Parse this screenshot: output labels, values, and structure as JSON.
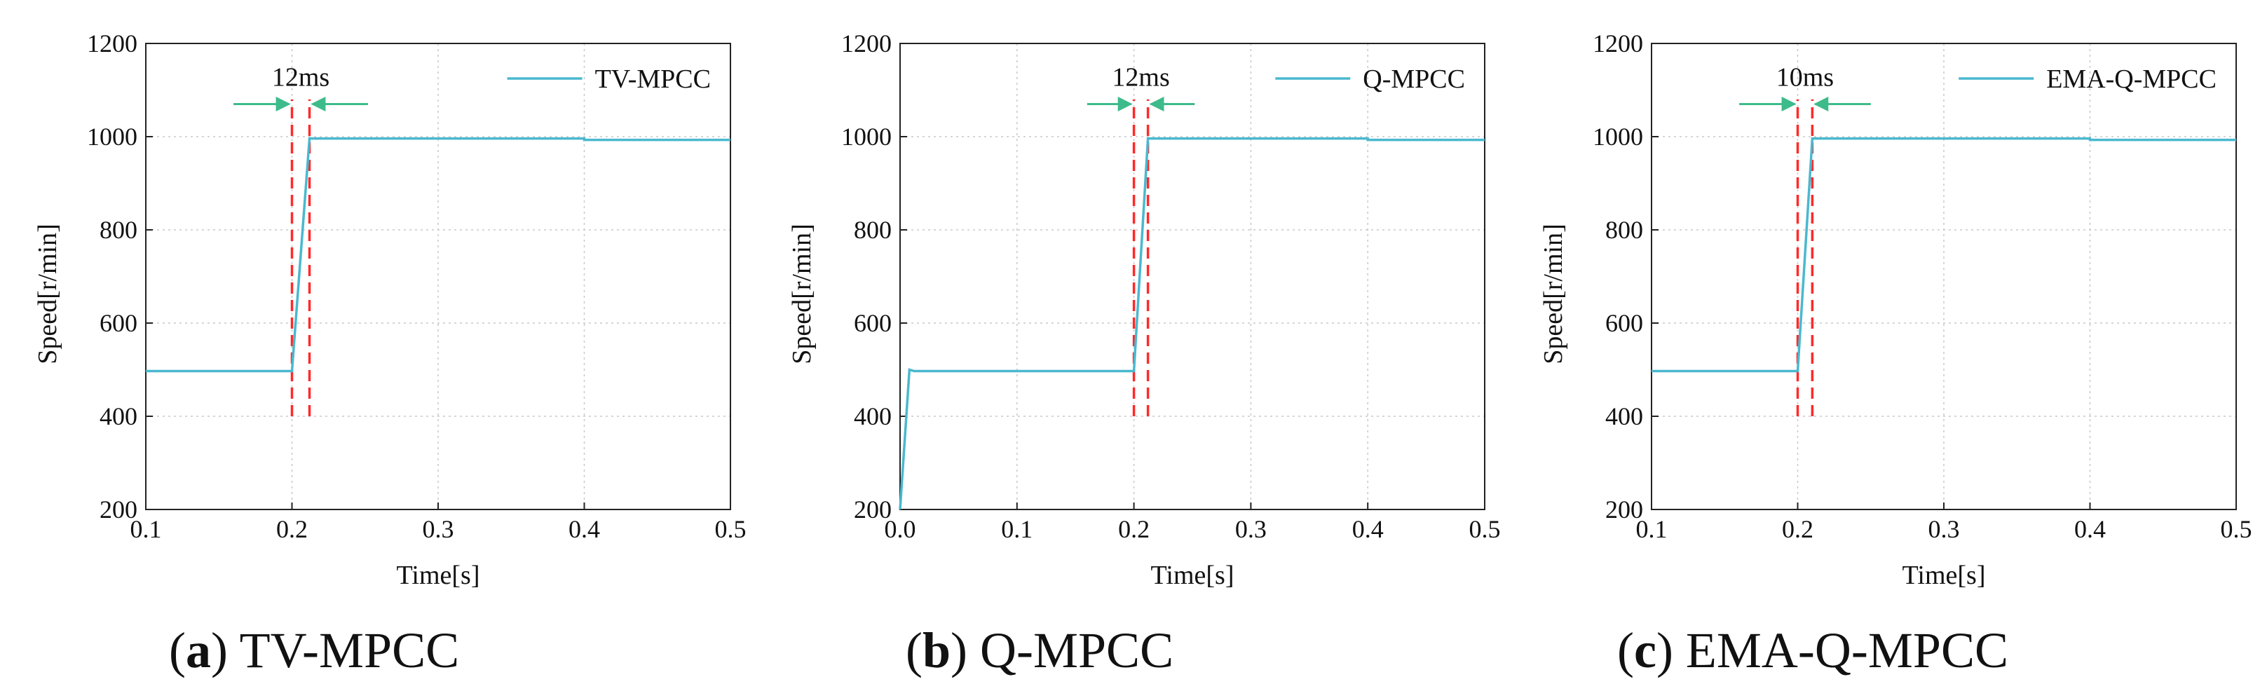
{
  "chart_data": [
    {
      "type": "line",
      "caption_label": "(a)",
      "caption_text": "TV-MPCC",
      "xlabel": "Time[s]",
      "ylabel": "Speed[r/min]",
      "xlim": [
        0.1,
        0.5
      ],
      "ylim": [
        200,
        1200
      ],
      "xticks": [
        0.1,
        0.2,
        0.3,
        0.4,
        0.5
      ],
      "xtick_labels": [
        "0.1",
        "0.2",
        "0.3",
        "0.4",
        "0.5"
      ],
      "yticks": [
        200,
        400,
        600,
        800,
        1000,
        1200
      ],
      "ytick_labels": [
        "200",
        "400",
        "600",
        "800",
        "1000",
        "1200"
      ],
      "grid": true,
      "legend_position": "top-right",
      "series": [
        {
          "name": "TV-MPCC",
          "color": "#4ab8cf",
          "x": [
            0.1,
            0.2,
            0.212,
            0.4,
            0.4,
            0.5
          ],
          "y": [
            497,
            497,
            996,
            996,
            993,
            993
          ]
        }
      ],
      "annotation": {
        "label": "12ms",
        "lines_x": [
          0.2,
          0.212
        ],
        "line_y_range": [
          400,
          1080
        ],
        "line_color": "#ff2a2a",
        "arrow_color": "#3dbb8a",
        "arrow_y": 1070,
        "arrow_left_from": 0.16,
        "arrow_right_from": 0.252
      }
    },
    {
      "type": "line",
      "caption_label": "(b)",
      "caption_text": "Q-MPCC",
      "xlabel": "Time[s]",
      "ylabel": "Speed[r/min]",
      "xlim": [
        0.0,
        0.5
      ],
      "ylim": [
        200,
        1200
      ],
      "xticks": [
        0.0,
        0.1,
        0.2,
        0.3,
        0.4,
        0.5
      ],
      "xtick_labels": [
        "0.0",
        "0.1",
        "0.2",
        "0.3",
        "0.4",
        "0.5"
      ],
      "yticks": [
        200,
        400,
        600,
        800,
        1000,
        1200
      ],
      "ytick_labels": [
        "200",
        "400",
        "600",
        "800",
        "1000",
        "1200"
      ],
      "grid": true,
      "legend_position": "top-right",
      "series": [
        {
          "name": "Q-MPCC",
          "color": "#4ab8cf",
          "x": [
            0.0,
            0.008,
            0.012,
            0.2,
            0.212,
            0.4,
            0.4,
            0.5
          ],
          "y": [
            200,
            500,
            497,
            497,
            996,
            996,
            993,
            993
          ]
        }
      ],
      "annotation": {
        "label": "12ms",
        "lines_x": [
          0.2,
          0.212
        ],
        "line_y_range": [
          400,
          1080
        ],
        "line_color": "#ff2a2a",
        "arrow_color": "#3dbb8a",
        "arrow_y": 1070,
        "arrow_left_from": 0.16,
        "arrow_right_from": 0.252
      }
    },
    {
      "type": "line",
      "caption_label": "(c)",
      "caption_text": "EMA-Q-MPCC",
      "xlabel": "Time[s]",
      "ylabel": "Speed[r/min]",
      "xlim": [
        0.1,
        0.5
      ],
      "ylim": [
        200,
        1200
      ],
      "xticks": [
        0.1,
        0.2,
        0.3,
        0.4,
        0.5
      ],
      "xtick_labels": [
        "0.1",
        "0.2",
        "0.3",
        "0.4",
        "0.5"
      ],
      "yticks": [
        200,
        400,
        600,
        800,
        1000,
        1200
      ],
      "ytick_labels": [
        "200",
        "400",
        "600",
        "800",
        "1000",
        "1200"
      ],
      "grid": true,
      "legend_position": "top-right",
      "series": [
        {
          "name": "EMA-Q-MPCC",
          "color": "#4ab8cf",
          "x": [
            0.1,
            0.2,
            0.21,
            0.4,
            0.4,
            0.5
          ],
          "y": [
            497,
            497,
            996,
            996,
            993,
            993
          ]
        }
      ],
      "annotation": {
        "label": "10ms",
        "lines_x": [
          0.2,
          0.21
        ],
        "line_y_range": [
          400,
          1080
        ],
        "line_color": "#ff2a2a",
        "arrow_color": "#3dbb8a",
        "arrow_y": 1070,
        "arrow_left_from": 0.16,
        "arrow_right_from": 0.25
      }
    }
  ]
}
